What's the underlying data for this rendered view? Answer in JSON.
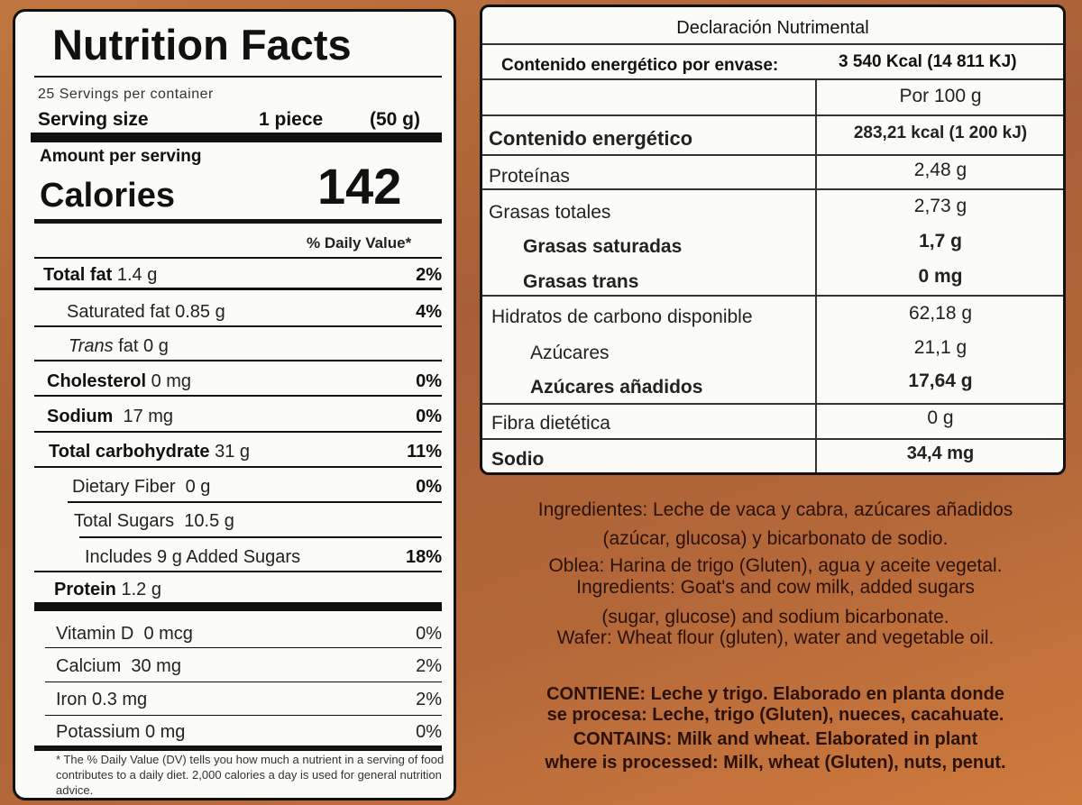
{
  "nutrition_facts": {
    "title": "Nutrition Facts",
    "servings_per_container": "25 Servings per container",
    "serving_size": {
      "label": "Serving size",
      "amount": "1 piece",
      "weight": "(50 g)"
    },
    "amount_per_serving": "Amount per serving",
    "calories": {
      "label": "Calories",
      "value": 142
    },
    "daily_value_header": "% Daily Value*",
    "nutrients": [
      {
        "name": "Total fat",
        "amount": "1.4 g",
        "daily_value": "2%"
      },
      {
        "name": "Saturated fat",
        "amount": "0.85 g",
        "daily_value": "4%"
      },
      {
        "name_italic": "Trans",
        "name": "fat",
        "amount": "0 g"
      },
      {
        "name": "Cholesterol",
        "amount": "0 mg",
        "daily_value": "0%"
      },
      {
        "name": "Sodium",
        "amount": "17 mg",
        "daily_value": "0%"
      },
      {
        "name": "Total carbohydrate",
        "amount": "31 g",
        "daily_value": "11%"
      },
      {
        "name": "Dietary Fiber",
        "amount": "0 g",
        "daily_value": "0%"
      },
      {
        "name": "Total Sugars",
        "amount": "10.5 g"
      },
      {
        "name": "Includes 9 g Added Sugars",
        "daily_value": "18%"
      },
      {
        "name": "Protein",
        "amount": "1.2 g"
      }
    ],
    "vitamins": [
      {
        "name": "Vitamin D",
        "amount": "0 mcg",
        "daily_value": "0%"
      },
      {
        "name": "Calcium",
        "amount": "30 mg",
        "daily_value": "2%"
      },
      {
        "name": "Iron",
        "amount": "0.3 mg",
        "daily_value": "2%"
      },
      {
        "name": "Potassium",
        "amount": "0 mg",
        "daily_value": "0%"
      }
    ],
    "footnote": "* The % Daily Value (DV) tells you how much a nutrient in a serving of food contributes to a daily diet. 2,000 calories a day is used for general nutrition advice."
  },
  "declaracion": {
    "title": "Declaración Nutrimental",
    "energy_per_package": {
      "label": "Contenido energético por envase:",
      "value": "3 540 Kcal (14 811 KJ)"
    },
    "column_header": "Por 100 g",
    "rows": [
      {
        "label": "Contenido energético",
        "value": "283,21 kcal (1 200 kJ)"
      },
      {
        "label": "Proteínas",
        "value": "2,48 g"
      },
      {
        "label": "Grasas totales",
        "value": "2,73 g"
      },
      {
        "label": "Grasas saturadas",
        "value": "1,7 g"
      },
      {
        "label": "Grasas trans",
        "value": "0 mg"
      },
      {
        "label": "Hidratos de carbono disponible",
        "value": "62,18 g"
      },
      {
        "label": "Azúcares",
        "value": "21,1 g"
      },
      {
        "label": "Azúcares añadidos",
        "value": "17,64 g"
      },
      {
        "label": "Fibra dietética",
        "value": "0 g"
      },
      {
        "label": "Sodio",
        "value": "34,4 mg"
      }
    ]
  },
  "ingredients": [
    "Ingredientes: Leche de vaca y cabra, azúcares añadidos",
    "(azúcar, glucosa) y bicarbonato de sodio.",
    "Oblea: Harina de trigo (Gluten), agua y aceite vegetal.",
    "Ingredients: Goat's and cow milk, added sugars",
    "(sugar, glucose) and sodium bicarbonate.",
    "Wafer: Wheat flour (gluten), water and vegetable oil."
  ],
  "allergens": [
    "CONTIENE: Leche y trigo. Elaborado en planta donde",
    "se procesa: Leche, trigo (Gluten), nueces, cacahuate.",
    "CONTAINS: Milk and wheat. Elaborated in plant",
    "where is processed: Milk, wheat (Gluten), nuts, penut."
  ]
}
